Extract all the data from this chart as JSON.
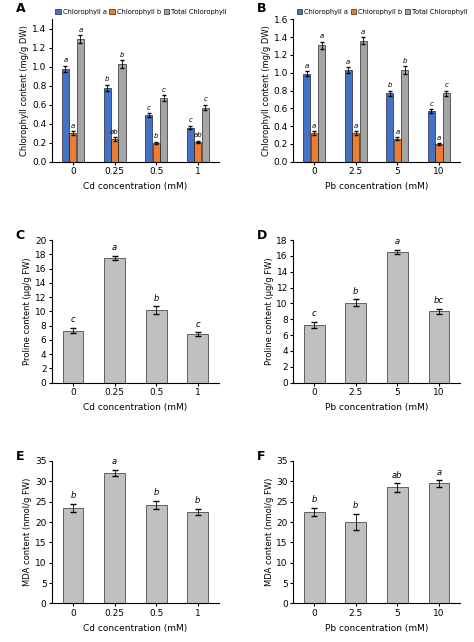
{
  "panel_A": {
    "label": "A",
    "categories": [
      "0",
      "0.25",
      "0.5",
      "1"
    ],
    "xlabel": "Cd concentration (mM)",
    "ylabel": "Chlorophyll content (mg/g DW)",
    "ylim": [
      0,
      1.5
    ],
    "yticks": [
      0,
      0.2,
      0.4,
      0.6,
      0.8,
      1.0,
      1.2,
      1.4
    ],
    "chloro_a": [
      0.98,
      0.78,
      0.49,
      0.36
    ],
    "chloro_b": [
      0.3,
      0.24,
      0.2,
      0.21
    ],
    "chloro_total": [
      1.29,
      1.03,
      0.67,
      0.57
    ],
    "chloro_a_err": [
      0.03,
      0.03,
      0.02,
      0.02
    ],
    "chloro_b_err": [
      0.02,
      0.02,
      0.01,
      0.01
    ],
    "chloro_total_err": [
      0.04,
      0.04,
      0.03,
      0.03
    ],
    "chloro_a_letters": [
      "a",
      "b",
      "c",
      "c"
    ],
    "chloro_b_letters": [
      "a",
      "ab",
      "b",
      "ab"
    ],
    "chloro_total_letters": [
      "a",
      "b",
      "c",
      "c"
    ]
  },
  "panel_B": {
    "label": "B",
    "categories": [
      "0",
      "2.5",
      "5",
      "10"
    ],
    "xlabel": "Pb concentration (mM)",
    "ylabel": "Chlorophyll content (mg/g DW)",
    "ylim": [
      0,
      1.6
    ],
    "yticks": [
      0,
      0.2,
      0.4,
      0.6,
      0.8,
      1.0,
      1.2,
      1.4,
      1.6
    ],
    "chloro_a": [
      0.99,
      1.03,
      0.77,
      0.57
    ],
    "chloro_b": [
      0.32,
      0.32,
      0.26,
      0.2
    ],
    "chloro_total": [
      1.31,
      1.36,
      1.03,
      0.77
    ],
    "chloro_a_err": [
      0.03,
      0.03,
      0.03,
      0.02
    ],
    "chloro_b_err": [
      0.02,
      0.02,
      0.02,
      0.01
    ],
    "chloro_total_err": [
      0.04,
      0.04,
      0.04,
      0.03
    ],
    "chloro_a_letters": [
      "a",
      "a",
      "b",
      "c"
    ],
    "chloro_b_letters": [
      "a",
      "a",
      "a",
      "a"
    ],
    "chloro_total_letters": [
      "a",
      "a",
      "b",
      "c"
    ]
  },
  "panel_C": {
    "label": "C",
    "categories": [
      "0",
      "0.25",
      "0.5",
      "1"
    ],
    "xlabel": "Cd concentration (mM)",
    "ylabel": "Proline content (μg/g FW)",
    "ylim": [
      0,
      20
    ],
    "yticks": [
      0,
      2,
      4,
      6,
      8,
      10,
      12,
      14,
      16,
      18,
      20
    ],
    "values": [
      7.3,
      17.5,
      10.2,
      6.8
    ],
    "errors": [
      0.4,
      0.3,
      0.5,
      0.25
    ],
    "letters": [
      "c",
      "a",
      "b",
      "c"
    ]
  },
  "panel_D": {
    "label": "D",
    "categories": [
      "0",
      "2.5",
      "5",
      "10"
    ],
    "xlabel": "Pb concentration (mM)",
    "ylabel": "Proline content (μg/g FW)",
    "ylim": [
      0,
      18
    ],
    "yticks": [
      0,
      2,
      4,
      6,
      8,
      10,
      12,
      14,
      16,
      18
    ],
    "values": [
      7.3,
      10.1,
      16.5,
      9.0
    ],
    "errors": [
      0.4,
      0.4,
      0.3,
      0.3
    ],
    "letters": [
      "c",
      "b",
      "a",
      "bc"
    ]
  },
  "panel_E": {
    "label": "E",
    "categories": [
      "0",
      "0.25",
      "0.5",
      "1"
    ],
    "xlabel": "Cd concentration (mM)",
    "ylabel": "MDA content (nmol/g FW)",
    "ylim": [
      0,
      35
    ],
    "yticks": [
      0,
      5,
      10,
      15,
      20,
      25,
      30,
      35
    ],
    "values": [
      23.5,
      32.0,
      24.2,
      22.5
    ],
    "errors": [
      1.0,
      0.8,
      1.0,
      0.8
    ],
    "letters": [
      "b",
      "a",
      "b",
      "b"
    ]
  },
  "panel_F": {
    "label": "F",
    "categories": [
      "0",
      "2.5",
      "5",
      "10"
    ],
    "xlabel": "Pb concentration (mM)",
    "ylabel": "MDA content (nmol/g FW)",
    "ylim": [
      0,
      35
    ],
    "yticks": [
      0,
      5,
      10,
      15,
      20,
      25,
      30,
      35
    ],
    "values": [
      22.5,
      20.0,
      28.5,
      29.5
    ],
    "errors": [
      1.0,
      2.0,
      1.0,
      0.8
    ],
    "letters": [
      "b",
      "b",
      "ab",
      "a"
    ]
  },
  "colors": {
    "chloro_a": "#4472C4",
    "chloro_b": "#ED7D31",
    "chloro_total": "#A5A5A5",
    "proline_mda": "#C0C0C0"
  },
  "legend_labels": [
    "Chlorophyll a",
    "Chlorophyll b",
    "Total Chlorophyll"
  ]
}
